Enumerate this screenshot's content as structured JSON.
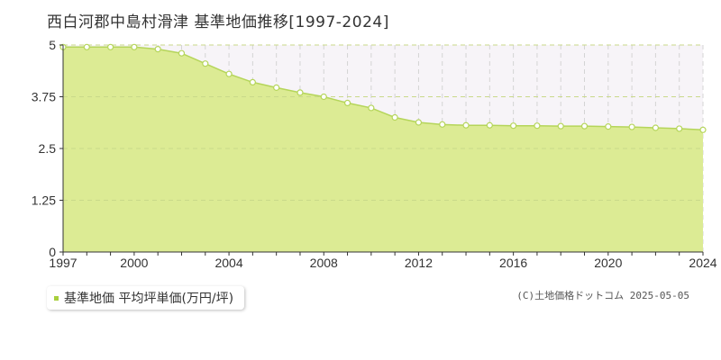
{
  "chart_data": {
    "type": "area",
    "title": "西白河郡中島村滑津 基準地価推移[1997-2024]",
    "x": [
      1997,
      1998,
      1999,
      2000,
      2001,
      2002,
      2003,
      2004,
      2005,
      2006,
      2007,
      2008,
      2009,
      2010,
      2011,
      2012,
      2013,
      2014,
      2015,
      2016,
      2017,
      2018,
      2019,
      2020,
      2021,
      2022,
      2023,
      2024
    ],
    "series": [
      {
        "name": "基準地価 平均坪単価(万円/坪)",
        "values": [
          4.95,
          4.95,
          4.95,
          4.95,
          4.9,
          4.8,
          4.55,
          4.3,
          4.1,
          3.97,
          3.85,
          3.75,
          3.6,
          3.48,
          3.25,
          3.13,
          3.08,
          3.06,
          3.06,
          3.05,
          3.05,
          3.04,
          3.04,
          3.03,
          3.02,
          3.0,
          2.98,
          2.95
        ]
      }
    ],
    "xlim": [
      1997,
      2024
    ],
    "ylim": [
      0,
      5
    ],
    "x_ticks": [
      "1997",
      "2000",
      "2004",
      "2008",
      "2012",
      "2016",
      "2020",
      "2024"
    ],
    "y_ticks": [
      "0",
      "1.25",
      "2.5",
      "3.75",
      "5"
    ],
    "grid": true,
    "legend_position": "bottom-left",
    "colors": {
      "fill": "#dceb94",
      "line": "#b5d55a",
      "marker_fill": "#ffffff",
      "marker_stroke": "#b5d55a",
      "legend_swatch": "#a8cf3c",
      "upper_band": "#f7f4f8",
      "grid": "#d4d4d4",
      "axis": "#333333"
    }
  },
  "copyright": "(C)土地価格ドットコム 2025-05-05"
}
